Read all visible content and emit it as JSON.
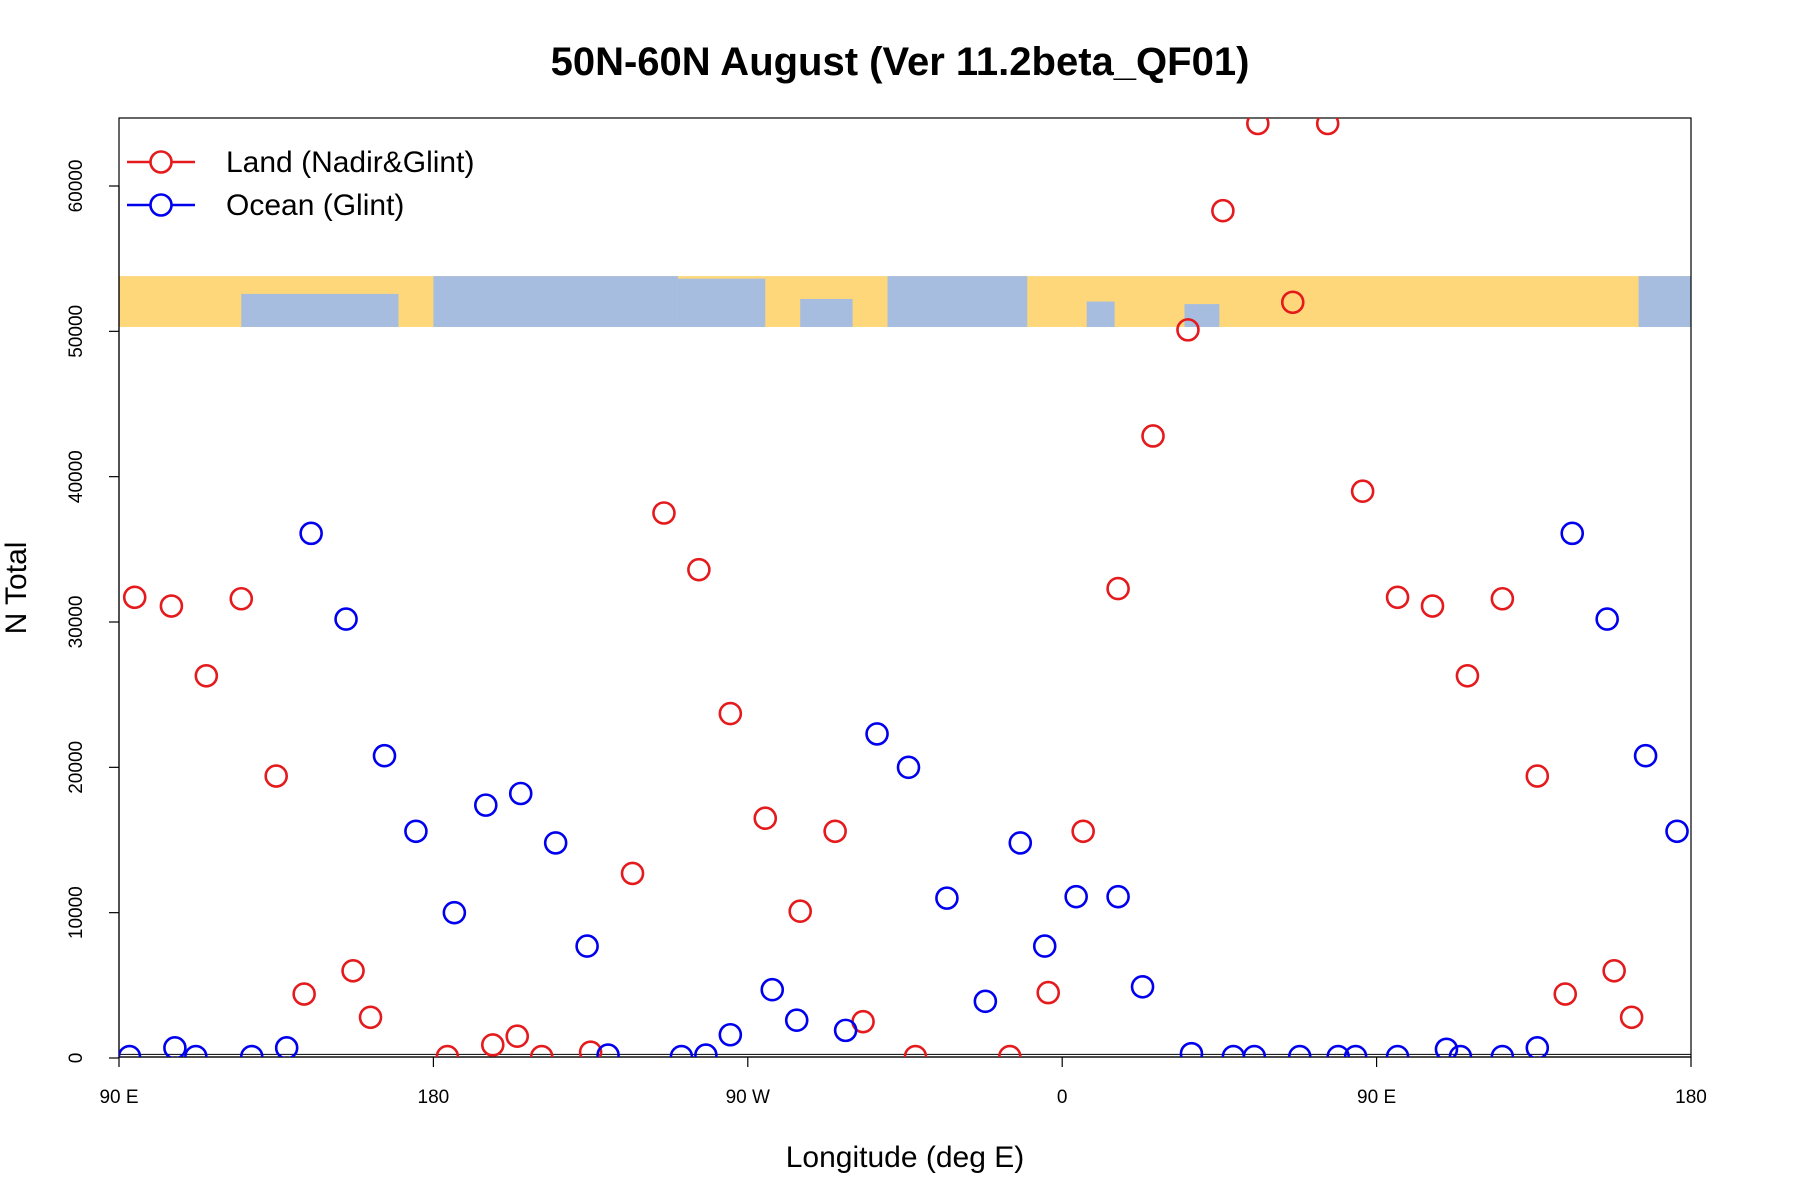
{
  "chart_data": {
    "type": "scatter",
    "title": "50N-60N August (Ver 11.2beta_QF01)",
    "xlabel": "Longitude (deg E)",
    "ylabel": "N Total",
    "xlim": [
      90,
      540
    ],
    "ylim": [
      0,
      63000
    ],
    "x_ticks": [
      {
        "value": 90,
        "label": "90 E"
      },
      {
        "value": 180,
        "label": "180"
      },
      {
        "value": 270,
        "label": "90 W"
      },
      {
        "value": 360,
        "label": "0"
      },
      {
        "value": 450,
        "label": "90 E"
      },
      {
        "value": 540,
        "label": "180"
      }
    ],
    "y_ticks": [
      {
        "value": 0,
        "label": "0"
      },
      {
        "value": 10000,
        "label": "10000"
      },
      {
        "value": 20000,
        "label": "20000"
      },
      {
        "value": 30000,
        "label": "30000"
      },
      {
        "value": 40000,
        "label": "40000"
      },
      {
        "value": 50000,
        "label": "50000"
      },
      {
        "value": 60000,
        "label": "60000"
      }
    ],
    "grid": false,
    "legend_position": "top-left",
    "map_strip": {
      "y_range": [
        50300,
        53800
      ],
      "land_color": "#fdd77a",
      "ocean_color": "#a7bde0"
    },
    "series": [
      {
        "name": "Land (Nadir&Glint)",
        "color": "#e41a1c",
        "points": [
          [
            94.5,
            31700
          ],
          [
            105,
            31100
          ],
          [
            115,
            26300
          ],
          [
            125,
            31600
          ],
          [
            135,
            19400
          ],
          [
            143,
            4400
          ],
          [
            157,
            6000
          ],
          [
            162,
            2800
          ],
          [
            184,
            100
          ],
          [
            197,
            900
          ],
          [
            204,
            1500
          ],
          [
            211,
            100
          ],
          [
            225,
            400
          ],
          [
            237,
            12700
          ],
          [
            246,
            37500
          ],
          [
            256,
            33600
          ],
          [
            265,
            23700
          ],
          [
            275,
            16500
          ],
          [
            285,
            10100
          ],
          [
            295,
            15600
          ],
          [
            303,
            2500
          ],
          [
            318,
            100
          ],
          [
            345,
            100
          ],
          [
            356,
            4500
          ],
          [
            366,
            15600
          ],
          [
            376,
            32300
          ],
          [
            386,
            42800
          ],
          [
            396,
            50100
          ],
          [
            406,
            58300
          ],
          [
            416,
            64300
          ],
          [
            426,
            52000
          ],
          [
            436,
            64300
          ],
          [
            446,
            39000
          ],
          [
            456,
            31700
          ],
          [
            466,
            31100
          ],
          [
            476,
            26300
          ],
          [
            486,
            31600
          ],
          [
            496,
            19400
          ],
          [
            504,
            4400
          ],
          [
            518,
            6000
          ],
          [
            523,
            2800
          ]
        ]
      },
      {
        "name": "Ocean (Glint)",
        "color": "#0000ee",
        "points": [
          [
            93,
            100
          ],
          [
            106,
            700
          ],
          [
            112,
            100
          ],
          [
            128,
            100
          ],
          [
            138,
            700
          ],
          [
            145,
            36100
          ],
          [
            155,
            30200
          ],
          [
            166,
            20800
          ],
          [
            175,
            15600
          ],
          [
            186,
            10000
          ],
          [
            195,
            17400
          ],
          [
            205,
            18200
          ],
          [
            215,
            14800
          ],
          [
            224,
            7700
          ],
          [
            230,
            200
          ],
          [
            251,
            100
          ],
          [
            258,
            200
          ],
          [
            265,
            1600
          ],
          [
            277,
            4700
          ],
          [
            284,
            2600
          ],
          [
            298,
            1900
          ],
          [
            307,
            22300
          ],
          [
            316,
            20000
          ],
          [
            327,
            11000
          ],
          [
            338,
            3900
          ],
          [
            348,
            14800
          ],
          [
            355,
            7700
          ],
          [
            364,
            11100
          ],
          [
            376,
            11100
          ],
          [
            383,
            4900
          ],
          [
            397,
            300
          ],
          [
            409,
            100
          ],
          [
            415,
            100
          ],
          [
            428,
            100
          ],
          [
            439,
            100
          ],
          [
            444,
            100
          ],
          [
            456,
            100
          ],
          [
            470,
            600
          ],
          [
            474,
            100
          ],
          [
            486,
            100
          ],
          [
            496,
            700
          ],
          [
            506,
            36100
          ],
          [
            516,
            30200
          ],
          [
            527,
            20800
          ],
          [
            536,
            15600
          ]
        ]
      }
    ]
  }
}
